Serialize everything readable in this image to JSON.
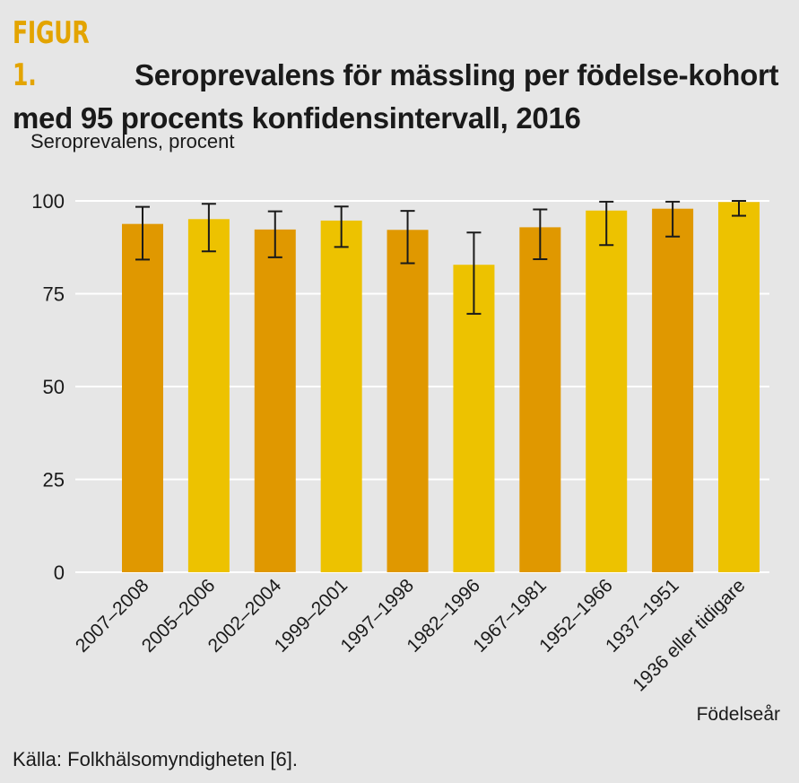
{
  "figure_label": "FIGUR 1.",
  "title": "Seroprevalens för mässling per födelse-kohort med 95 procents konfidensintervall, 2016",
  "source": "Källa: Folkhälsomyndigheten [6].",
  "colors": {
    "dark": "#e09800",
    "light": "#edc200",
    "error_bar": "#1a1a1a",
    "grid": "#ffffff",
    "background": "#e6e6e6",
    "figure_label": "#e3a400"
  },
  "chart_data": {
    "type": "bar",
    "ylabel": "Seroprevalens, procent",
    "xlabel": "Födelseår",
    "ylim": [
      0,
      100
    ],
    "yticks": [
      0,
      25,
      50,
      75,
      100
    ],
    "grid": true,
    "categories": [
      "2007–2008",
      "2005–2006",
      "2002–2004",
      "1999–2001",
      "1997–1998",
      "1982–1996",
      "1967–1981",
      "1952–1966",
      "1937–1951",
      "1936 eller tidigare"
    ],
    "values": [
      93.8,
      95.1,
      92.3,
      94.7,
      92.2,
      82.8,
      92.9,
      97.4,
      97.9,
      99.7
    ],
    "ci_low": [
      84.2,
      86.4,
      84.8,
      87.6,
      83.2,
      69.6,
      84.3,
      88.1,
      90.4,
      96.0
    ],
    "ci_high": [
      98.4,
      99.2,
      97.2,
      98.5,
      97.3,
      91.5,
      97.7,
      99.8,
      99.8,
      100
    ],
    "bar_colors": [
      "dark",
      "light",
      "dark",
      "light",
      "dark",
      "light",
      "dark",
      "light",
      "dark",
      "light"
    ]
  }
}
